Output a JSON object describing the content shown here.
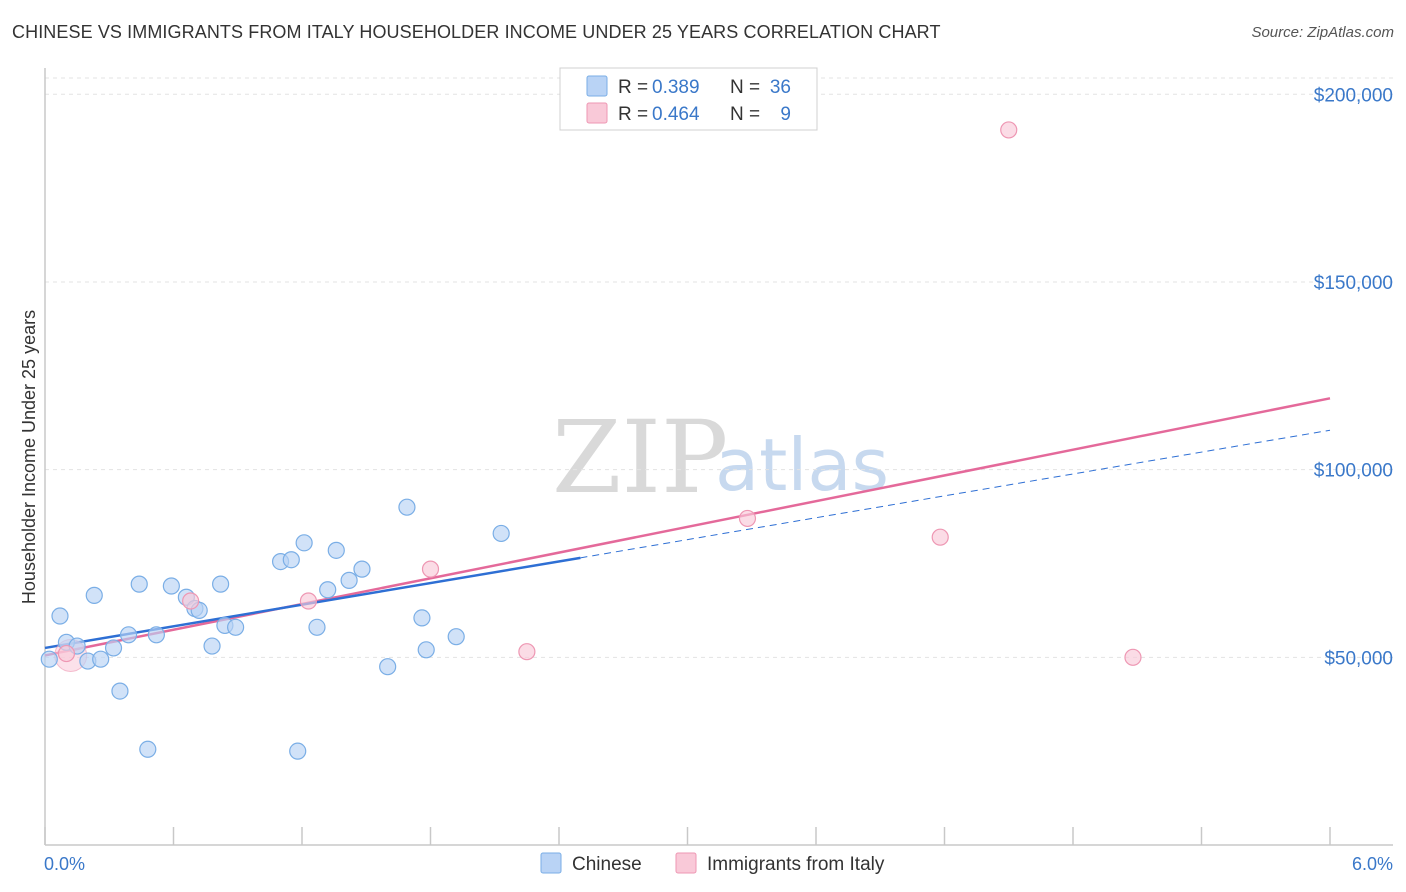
{
  "header": {
    "title": "CHINESE VS IMMIGRANTS FROM ITALY HOUSEHOLDER INCOME UNDER 25 YEARS CORRELATION CHART",
    "source": "Source: ZipAtlas.com"
  },
  "watermark": {
    "zip": "ZIP",
    "atlas": "atlas"
  },
  "colors": {
    "chinese_fill": "#b9d3f5",
    "chinese_stroke": "#7aaee6",
    "chinese_line": "#2e6fd4",
    "italy_fill": "#f9c9d8",
    "italy_stroke": "#ee97b3",
    "italy_line": "#e4699a",
    "tick_text": "#3a78c9",
    "grid": "#e3e3e3"
  },
  "legend": {
    "rows": [
      {
        "r_label": "R =",
        "r_value": "0.389",
        "n_label": "N =",
        "n_value": "36"
      },
      {
        "r_label": "R =",
        "r_value": "0.464",
        "n_label": "N =",
        "n_value": "9"
      }
    ]
  },
  "chart_data": {
    "type": "scatter",
    "title": "CHINESE VS IMMIGRANTS FROM ITALY HOUSEHOLDER INCOME UNDER 25 YEARS CORRELATION CHART",
    "xlabel": "",
    "ylabel": "Householder Income Under 25 years",
    "xlim": [
      0,
      6.0
    ],
    "ylim": [
      0,
      207000
    ],
    "x_tick_labels": [
      "0.0%",
      "6.0%"
    ],
    "y_ticks": [
      50000,
      100000,
      150000,
      200000
    ],
    "y_tick_labels": [
      "$50,000",
      "$100,000",
      "$150,000",
      "$200,000"
    ],
    "grid": "horizontal dashed",
    "legend_position": "top-center and bottom",
    "series": [
      {
        "name": "Chinese",
        "r": 0.389,
        "n": 36,
        "points": [
          [
            0.02,
            49500
          ],
          [
            0.07,
            61000
          ],
          [
            0.1,
            54000
          ],
          [
            0.15,
            53000
          ],
          [
            0.2,
            49000
          ],
          [
            0.23,
            66500
          ],
          [
            0.26,
            49500
          ],
          [
            0.32,
            52500
          ],
          [
            0.35,
            41000
          ],
          [
            0.39,
            56000
          ],
          [
            0.44,
            69500
          ],
          [
            0.48,
            25500
          ],
          [
            0.52,
            56000
          ],
          [
            0.59,
            69000
          ],
          [
            0.66,
            66000
          ],
          [
            0.7,
            63000
          ],
          [
            0.72,
            62500
          ],
          [
            0.78,
            53000
          ],
          [
            0.82,
            69500
          ],
          [
            0.84,
            58500
          ],
          [
            0.89,
            58000
          ],
          [
            1.1,
            75500
          ],
          [
            1.15,
            76000
          ],
          [
            1.18,
            25000
          ],
          [
            1.21,
            80500
          ],
          [
            1.27,
            58000
          ],
          [
            1.32,
            68000
          ],
          [
            1.36,
            78500
          ],
          [
            1.42,
            70500
          ],
          [
            1.48,
            73500
          ],
          [
            1.6,
            47500
          ],
          [
            1.69,
            90000
          ],
          [
            1.76,
            60500
          ],
          [
            1.78,
            52000
          ],
          [
            1.92,
            55500
          ],
          [
            2.13,
            83000
          ]
        ],
        "trend": {
          "x0": 0.0,
          "y0": 52500,
          "x1": 2.5,
          "y1": 76500,
          "dash_x1": 6.0,
          "dash_y1": 110500
        }
      },
      {
        "name": "Immigrants from Italy",
        "r": 0.464,
        "n": 9,
        "points": [
          [
            0.1,
            51000
          ],
          [
            0.68,
            65000
          ],
          [
            1.23,
            65000
          ],
          [
            1.8,
            73500
          ],
          [
            2.25,
            51500
          ],
          [
            3.28,
            87000
          ],
          [
            4.18,
            82000
          ],
          [
            4.5,
            190500
          ],
          [
            5.08,
            50000
          ]
        ],
        "trend": {
          "x0": 0.0,
          "y0": 50500,
          "x1": 6.0,
          "y1": 119000
        }
      }
    ]
  }
}
